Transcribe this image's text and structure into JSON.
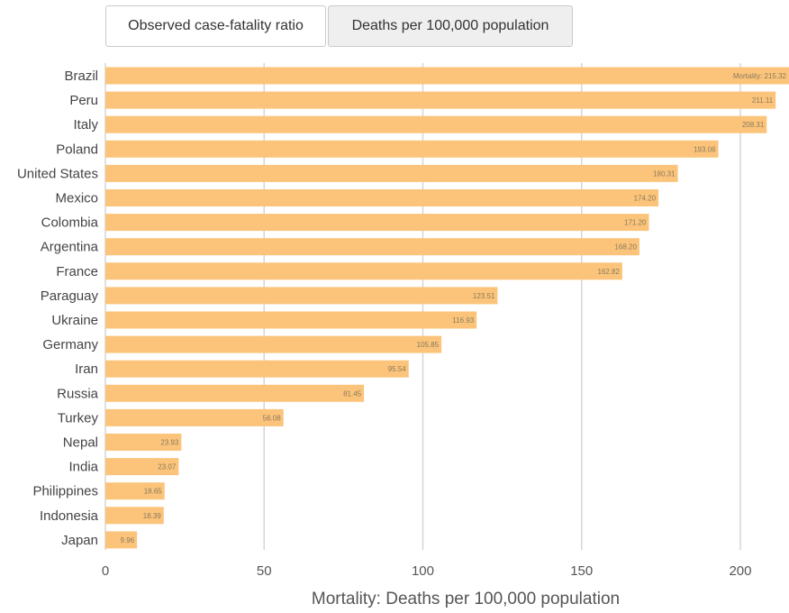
{
  "tabs": [
    {
      "label": "Observed case-fatality ratio",
      "active": false
    },
    {
      "label": "Deaths per 100,000 population",
      "active": true
    }
  ],
  "colors": {
    "bar": "#fbc47a",
    "grid": "#d6d6d6",
    "active_tab_bg": "#efefef"
  },
  "chart_data": {
    "type": "bar",
    "orientation": "horizontal",
    "xlabel": "Mortality: Deaths per 100,000 population",
    "xlim": [
      0,
      215.32
    ],
    "xticks": [
      0,
      50,
      100,
      150,
      200
    ],
    "grid": true,
    "value_label_prefix_first": "Mortality: ",
    "categories": [
      "Brazil",
      "Peru",
      "Italy",
      "Poland",
      "United States",
      "Mexico",
      "Colombia",
      "Argentina",
      "France",
      "Paraguay",
      "Ukraine",
      "Germany",
      "Iran",
      "Russia",
      "Turkey",
      "Nepal",
      "India",
      "Philippines",
      "Indonesia",
      "Japan"
    ],
    "values": [
      215.32,
      211.11,
      208.31,
      193.06,
      180.31,
      174.2,
      171.2,
      168.2,
      162.82,
      123.51,
      116.93,
      105.85,
      95.54,
      81.45,
      56.08,
      23.93,
      23.07,
      18.65,
      18.39,
      9.96
    ],
    "value_labels": [
      "Mortality: 215.32",
      "211.11",
      "208.31",
      "193.06",
      "180.31",
      "174.20",
      "171.20",
      "168.20",
      "162.82",
      "123.51",
      "116.93",
      "105.85",
      "95.54",
      "81.45",
      "56.08",
      "23.93",
      "23.07",
      "18.65",
      "18.39",
      "9.96"
    ]
  }
}
